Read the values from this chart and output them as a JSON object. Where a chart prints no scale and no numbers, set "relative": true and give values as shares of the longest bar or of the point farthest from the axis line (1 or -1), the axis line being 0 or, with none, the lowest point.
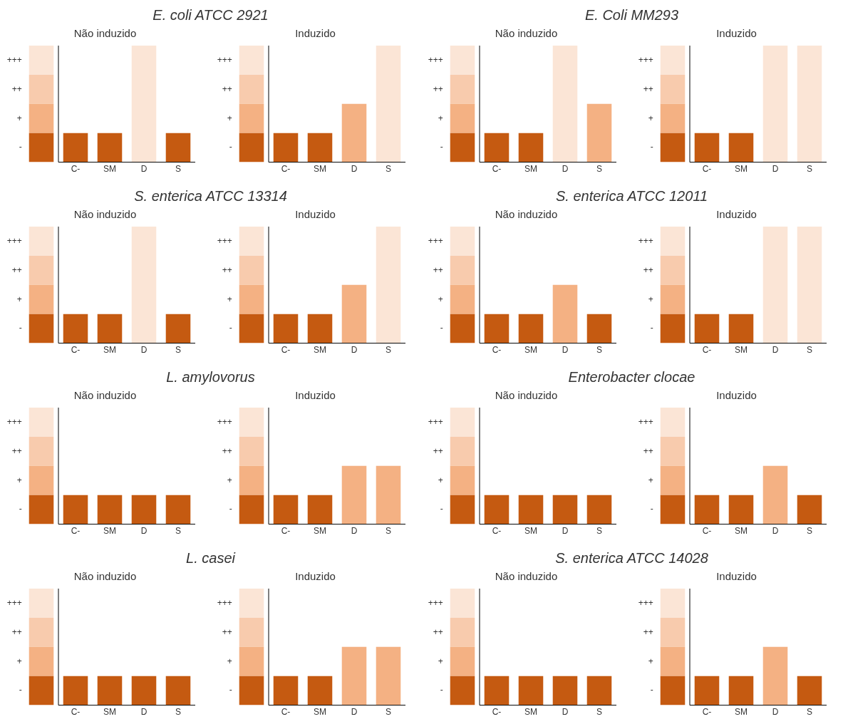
{
  "chart_data": [
    {
      "type": "bar",
      "title": "E. coli ATCC 2921",
      "subtitle": "Não induzido",
      "categories": [
        null,
        "C-",
        "SM",
        "D",
        "S"
      ],
      "relative": true,
      "stacked": true,
      "series": [
        {
          "name": "-",
          "color": "#c55a11",
          "values": [
            0.25,
            0.25,
            0.25,
            null,
            0.25
          ]
        },
        {
          "name": "+",
          "color": "#f4b183",
          "values": [
            0.25,
            null,
            null,
            null,
            null
          ]
        },
        {
          "name": "++",
          "color": "#f8cbad",
          "values": [
            0.25,
            null,
            null,
            null,
            null
          ]
        },
        {
          "name": "+++",
          "color": "#fbe5d6",
          "values": [
            0.25,
            null,
            null,
            1,
            null
          ]
        }
      ]
    },
    {
      "type": "bar",
      "subtitle": "Induzido",
      "categories": [
        null,
        "C-",
        "SM",
        "D",
        "S"
      ],
      "relative": true,
      "stacked": true,
      "series": [
        {
          "name": "-",
          "color": "#c55a11",
          "values": [
            0.25,
            0.25,
            0.25,
            null,
            null
          ]
        },
        {
          "name": "+",
          "color": "#f4b183",
          "values": [
            0.25,
            null,
            null,
            0.5,
            null
          ]
        },
        {
          "name": "++",
          "color": "#f8cbad",
          "values": [
            0.25,
            null,
            null,
            null,
            null
          ]
        },
        {
          "name": "+++",
          "color": "#fbe5d6",
          "values": [
            0.25,
            null,
            null,
            null,
            1
          ]
        }
      ]
    },
    {
      "type": "bar",
      "title": "E. Coli MM293",
      "subtitle": "Não induzido",
      "categories": [
        null,
        "C-",
        "SM",
        "D",
        "S"
      ],
      "relative": true,
      "stacked": true,
      "series": [
        {
          "name": "-",
          "color": "#c55a11",
          "values": [
            0.25,
            0.25,
            0.25,
            null,
            null
          ]
        },
        {
          "name": "+",
          "color": "#f4b183",
          "values": [
            0.25,
            null,
            null,
            null,
            0.5
          ]
        },
        {
          "name": "++",
          "color": "#f8cbad",
          "values": [
            0.25,
            null,
            null,
            null,
            null
          ]
        },
        {
          "name": "+++",
          "color": "#fbe5d6",
          "values": [
            0.25,
            null,
            null,
            1,
            null
          ]
        }
      ]
    },
    {
      "type": "bar",
      "subtitle": "Induzido",
      "categories": [
        null,
        "C-",
        "SM",
        "D",
        "S"
      ],
      "relative": true,
      "stacked": true,
      "series": [
        {
          "name": "-",
          "color": "#c55a11",
          "values": [
            0.25,
            0.25,
            0.25,
            null,
            null
          ]
        },
        {
          "name": "+",
          "color": "#f4b183",
          "values": [
            0.25,
            null,
            null,
            null,
            null
          ]
        },
        {
          "name": "++",
          "color": "#f8cbad",
          "values": [
            0.25,
            null,
            null,
            null,
            null
          ]
        },
        {
          "name": "+++",
          "color": "#fbe5d6",
          "values": [
            0.25,
            null,
            null,
            1,
            1
          ]
        }
      ]
    },
    {
      "type": "bar",
      "title": "S. enterica ATCC 13314",
      "subtitle": "Não induzido",
      "categories": [
        null,
        "C-",
        "SM",
        "D",
        "S"
      ],
      "relative": true,
      "stacked": true,
      "series": [
        {
          "name": "-",
          "color": "#c55a11",
          "values": [
            0.25,
            0.25,
            0.25,
            null,
            0.25
          ]
        },
        {
          "name": "+",
          "color": "#f4b183",
          "values": [
            0.25,
            null,
            null,
            null,
            null
          ]
        },
        {
          "name": "++",
          "color": "#f8cbad",
          "values": [
            0.25,
            null,
            null,
            null,
            null
          ]
        },
        {
          "name": "+++",
          "color": "#fbe5d6",
          "values": [
            0.25,
            null,
            null,
            1,
            null
          ]
        }
      ]
    },
    {
      "type": "bar",
      "subtitle": "Induzido",
      "categories": [
        null,
        "C-",
        "SM",
        "D",
        "S"
      ],
      "relative": true,
      "stacked": true,
      "series": [
        {
          "name": "-",
          "color": "#c55a11",
          "values": [
            0.25,
            0.25,
            0.25,
            null,
            null
          ]
        },
        {
          "name": "+",
          "color": "#f4b183",
          "values": [
            0.25,
            null,
            null,
            0.5,
            null
          ]
        },
        {
          "name": "++",
          "color": "#f8cbad",
          "values": [
            0.25,
            null,
            null,
            null,
            null
          ]
        },
        {
          "name": "+++",
          "color": "#fbe5d6",
          "values": [
            0.25,
            null,
            null,
            null,
            1
          ]
        }
      ]
    },
    {
      "type": "bar",
      "title": "S. enterica ATCC 12011",
      "subtitle": "Não induzido",
      "categories": [
        null,
        "C-",
        "SM",
        "D",
        "S"
      ],
      "relative": true,
      "stacked": true,
      "series": [
        {
          "name": "-",
          "color": "#c55a11",
          "values": [
            0.25,
            0.25,
            0.25,
            null,
            0.25
          ]
        },
        {
          "name": "+",
          "color": "#f4b183",
          "values": [
            0.25,
            null,
            null,
            0.5,
            null
          ]
        },
        {
          "name": "++",
          "color": "#f8cbad",
          "values": [
            0.25,
            null,
            null,
            null,
            null
          ]
        },
        {
          "name": "+++",
          "color": "#fbe5d6",
          "values": [
            0.25,
            null,
            null,
            null,
            null
          ]
        }
      ]
    },
    {
      "type": "bar",
      "subtitle": "Induzido",
      "categories": [
        null,
        "C-",
        "SM",
        "D",
        "S"
      ],
      "relative": true,
      "stacked": true,
      "series": [
        {
          "name": "-",
          "color": "#c55a11",
          "values": [
            0.25,
            0.25,
            0.25,
            null,
            null
          ]
        },
        {
          "name": "+",
          "color": "#f4b183",
          "values": [
            0.25,
            null,
            null,
            null,
            null
          ]
        },
        {
          "name": "++",
          "color": "#f8cbad",
          "values": [
            0.25,
            null,
            null,
            null,
            null
          ]
        },
        {
          "name": "+++",
          "color": "#fbe5d6",
          "values": [
            0.25,
            null,
            null,
            1,
            1
          ]
        }
      ]
    },
    {
      "type": "bar",
      "title": "L. amylovorus",
      "subtitle": "Não induzido",
      "categories": [
        null,
        "C-",
        "SM",
        "D",
        "S"
      ],
      "relative": true,
      "stacked": true,
      "series": [
        {
          "name": "-",
          "color": "#c55a11",
          "values": [
            0.25,
            0.25,
            0.25,
            0.25,
            0.25
          ]
        },
        {
          "name": "+",
          "color": "#f4b183",
          "values": [
            0.25,
            null,
            null,
            null,
            null
          ]
        },
        {
          "name": "++",
          "color": "#f8cbad",
          "values": [
            0.25,
            null,
            null,
            null,
            null
          ]
        },
        {
          "name": "+++",
          "color": "#fbe5d6",
          "values": [
            0.25,
            null,
            null,
            null,
            null
          ]
        }
      ]
    },
    {
      "type": "bar",
      "subtitle": "Induzido",
      "categories": [
        null,
        "C-",
        "SM",
        "D",
        "S"
      ],
      "relative": true,
      "stacked": true,
      "series": [
        {
          "name": "-",
          "color": "#c55a11",
          "values": [
            0.25,
            0.25,
            0.25,
            null,
            null
          ]
        },
        {
          "name": "+",
          "color": "#f4b183",
          "values": [
            0.25,
            null,
            null,
            0.5,
            0.5
          ]
        },
        {
          "name": "++",
          "color": "#f8cbad",
          "values": [
            0.25,
            null,
            null,
            null,
            null
          ]
        },
        {
          "name": "+++",
          "color": "#fbe5d6",
          "values": [
            0.25,
            null,
            null,
            null,
            null
          ]
        }
      ]
    },
    {
      "type": "bar",
      "title": "Enterobacter clocae",
      "subtitle": "Não induzido",
      "categories": [
        null,
        "C-",
        "SM",
        "D",
        "S"
      ],
      "relative": true,
      "stacked": true,
      "series": [
        {
          "name": "-",
          "color": "#c55a11",
          "values": [
            0.25,
            0.25,
            0.25,
            0.25,
            0.25
          ]
        },
        {
          "name": "+",
          "color": "#f4b183",
          "values": [
            0.25,
            null,
            null,
            null,
            null
          ]
        },
        {
          "name": "++",
          "color": "#f8cbad",
          "values": [
            0.25,
            null,
            null,
            null,
            null
          ]
        },
        {
          "name": "+++",
          "color": "#fbe5d6",
          "values": [
            0.25,
            null,
            null,
            null,
            null
          ]
        }
      ]
    },
    {
      "type": "bar",
      "subtitle": "Induzido",
      "categories": [
        null,
        "C-",
        "SM",
        "D",
        "S"
      ],
      "relative": true,
      "stacked": true,
      "series": [
        {
          "name": "-",
          "color": "#c55a11",
          "values": [
            0.25,
            0.25,
            0.25,
            null,
            0.25
          ]
        },
        {
          "name": "+",
          "color": "#f4b183",
          "values": [
            0.25,
            null,
            null,
            0.5,
            null
          ]
        },
        {
          "name": "++",
          "color": "#f8cbad",
          "values": [
            0.25,
            null,
            null,
            null,
            null
          ]
        },
        {
          "name": "+++",
          "color": "#fbe5d6",
          "values": [
            0.25,
            null,
            null,
            null,
            null
          ]
        }
      ]
    },
    {
      "type": "bar",
      "title": "L. casei",
      "subtitle": "Não induzido",
      "categories": [
        null,
        "C-",
        "SM",
        "D",
        "S"
      ],
      "relative": true,
      "stacked": true,
      "series": [
        {
          "name": "-",
          "color": "#c55a11",
          "values": [
            0.25,
            0.25,
            0.25,
            0.25,
            0.25
          ]
        },
        {
          "name": "+",
          "color": "#f4b183",
          "values": [
            0.25,
            null,
            null,
            null,
            null
          ]
        },
        {
          "name": "++",
          "color": "#f8cbad",
          "values": [
            0.25,
            null,
            null,
            null,
            null
          ]
        },
        {
          "name": "+++",
          "color": "#fbe5d6",
          "values": [
            0.25,
            null,
            null,
            null,
            null
          ]
        }
      ]
    },
    {
      "type": "bar",
      "subtitle": "Induzido",
      "categories": [
        null,
        "C-",
        "SM",
        "D",
        "S"
      ],
      "relative": true,
      "stacked": true,
      "series": [
        {
          "name": "-",
          "color": "#c55a11",
          "values": [
            0.25,
            0.25,
            0.25,
            null,
            null
          ]
        },
        {
          "name": "+",
          "color": "#f4b183",
          "values": [
            0.25,
            null,
            null,
            0.5,
            0.5
          ]
        },
        {
          "name": "++",
          "color": "#f8cbad",
          "values": [
            0.25,
            null,
            null,
            null,
            null
          ]
        },
        {
          "name": "+++",
          "color": "#fbe5d6",
          "values": [
            0.25,
            null,
            null,
            null,
            null
          ]
        }
      ]
    },
    {
      "type": "bar",
      "title": "S. enterica ATCC 14028",
      "subtitle": "Não induzido",
      "categories": [
        null,
        "C-",
        "SM",
        "D",
        "S"
      ],
      "relative": true,
      "stacked": true,
      "series": [
        {
          "name": "-",
          "color": "#c55a11",
          "values": [
            0.25,
            0.25,
            0.25,
            0.25,
            0.25
          ]
        },
        {
          "name": "+",
          "color": "#f4b183",
          "values": [
            0.25,
            null,
            null,
            null,
            null
          ]
        },
        {
          "name": "++",
          "color": "#f8cbad",
          "values": [
            0.25,
            null,
            null,
            null,
            null
          ]
        },
        {
          "name": "+++",
          "color": "#fbe5d6",
          "values": [
            0.25,
            null,
            null,
            null,
            null
          ]
        }
      ]
    },
    {
      "type": "bar",
      "subtitle": "Induzido",
      "categories": [
        null,
        "C-",
        "SM",
        "D",
        "S"
      ],
      "relative": true,
      "stacked": true,
      "series": [
        {
          "name": "-",
          "color": "#c55a11",
          "values": [
            0.25,
            0.25,
            0.25,
            null,
            0.25
          ]
        },
        {
          "name": "+",
          "color": "#f4b183",
          "values": [
            0.25,
            null,
            null,
            0.5,
            null
          ]
        },
        {
          "name": "++",
          "color": "#f8cbad",
          "values": [
            0.25,
            null,
            null,
            null,
            null
          ]
        },
        {
          "name": "+++",
          "color": "#fbe5d6",
          "values": [
            0.25,
            null,
            null,
            null,
            null
          ]
        }
      ]
    }
  ]
}
